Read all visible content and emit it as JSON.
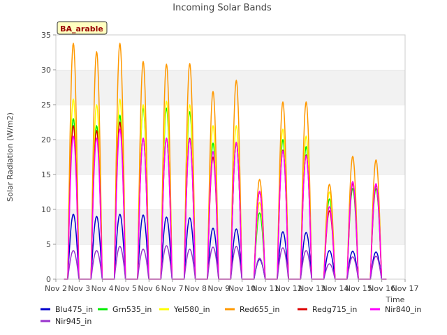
{
  "chart_data": {
    "type": "line",
    "title": "Incoming Solar Bands",
    "xlabel": "Time",
    "ylabel": "Solar Radiation (W/m2)",
    "annotation": "BA_arable",
    "xlim": [
      0,
      15
    ],
    "ylim": [
      0,
      35
    ],
    "yticks": [
      0,
      5,
      10,
      15,
      20,
      25,
      30,
      35
    ],
    "xtick_labels": [
      "Nov 2",
      "Nov 3",
      "Nov 4",
      "Nov 5",
      "Nov 6",
      "Nov 7",
      "Nov 8",
      "Nov 9",
      "Nov 10",
      "Nov 11",
      "Nov 12",
      "Nov 13",
      "Nov 14",
      "Nov 15",
      "Nov 16",
      "Nov 17"
    ],
    "grid": "horizontal bands",
    "legend": "bottom",
    "day_peak_x": [
      0.75,
      1.75,
      2.75,
      3.75,
      4.75,
      5.75,
      6.75,
      7.75,
      8.75,
      9.75,
      10.75,
      11.75,
      12.75,
      13.75
    ],
    "series": [
      {
        "name": "Blu475_in",
        "color": "#0000cc",
        "daily_peaks": [
          9.3,
          9.0,
          9.3,
          9.2,
          8.9,
          8.8,
          7.3,
          7.2,
          2.8,
          6.8,
          6.7,
          4.1,
          4.0,
          3.9
        ]
      },
      {
        "name": "Grn535_in",
        "color": "#00ee00",
        "daily_peaks": [
          23.0,
          22.0,
          23.5,
          24.5,
          24.5,
          24.0,
          19.5,
          19.5,
          9.5,
          20.0,
          19.0,
          11.5,
          13.0,
          13.0
        ]
      },
      {
        "name": "Yel580_in",
        "color": "#ffff00",
        "daily_peaks": [
          25.8,
          25.0,
          25.8,
          25.0,
          25.5,
          25.0,
          22.0,
          22.0,
          11.0,
          21.5,
          20.5,
          12.5,
          14.0,
          13.5
        ]
      },
      {
        "name": "Red655_in",
        "color": "#ff9900",
        "daily_peaks": [
          33.8,
          32.6,
          33.8,
          31.2,
          30.8,
          30.9,
          26.9,
          28.5,
          14.3,
          25.4,
          25.4,
          13.6,
          17.6,
          17.1
        ]
      },
      {
        "name": "Redg715_in",
        "color": "#dd0000",
        "daily_peaks": [
          22.0,
          21.3,
          22.5,
          20.2,
          20.2,
          20.2,
          17.5,
          19.6,
          12.5,
          18.5,
          17.8,
          9.8,
          13.7,
          13.5
        ]
      },
      {
        "name": "Nir840_in",
        "color": "#ff00ff",
        "daily_peaks": [
          20.5,
          20.2,
          21.5,
          20.2,
          20.2,
          20.0,
          18.3,
          19.6,
          12.6,
          18.4,
          17.7,
          10.4,
          14.0,
          13.7
        ]
      },
      {
        "name": "Nir945_in",
        "color": "#9933cc",
        "daily_peaks": [
          4.1,
          4.1,
          4.7,
          4.3,
          4.8,
          4.3,
          4.6,
          4.7,
          3.0,
          4.5,
          4.1,
          2.2,
          3.2,
          3.3
        ]
      }
    ]
  }
}
